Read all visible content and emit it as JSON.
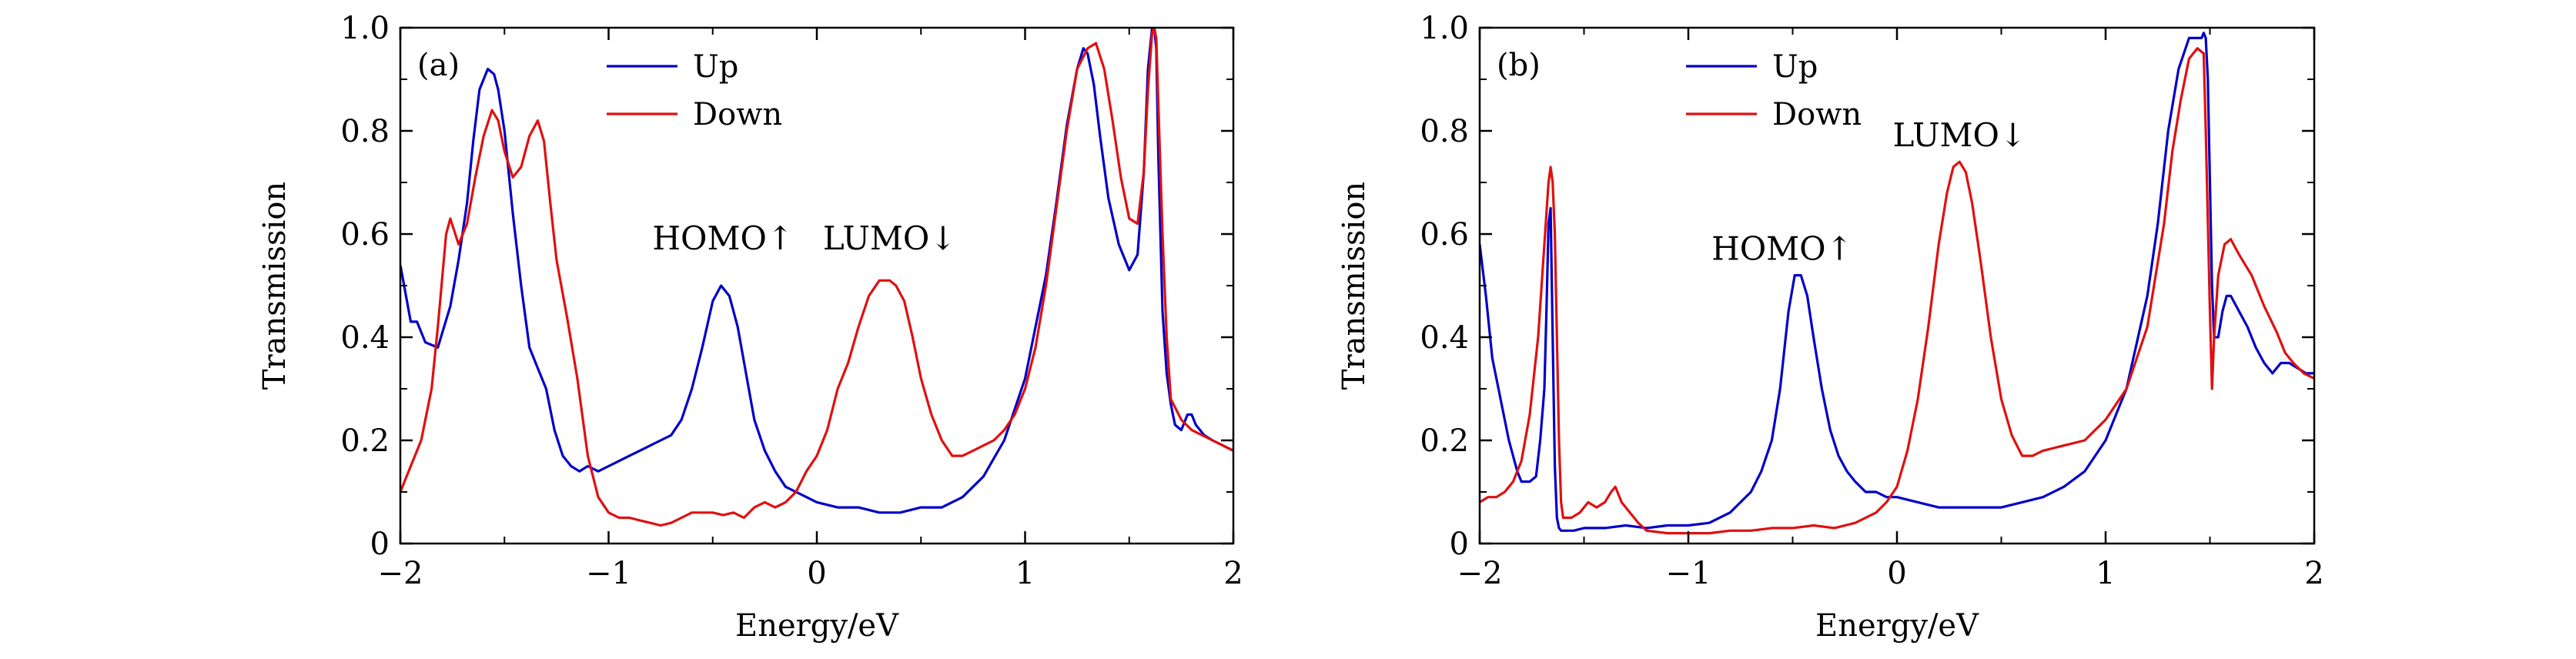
{
  "colors": {
    "up": "#0000c8",
    "down": "#e01010",
    "axis": "#000000"
  },
  "chart_data": [
    {
      "type": "line",
      "panel_label": "(a)",
      "xlabel": "Energy/eV",
      "ylabel": "Transmission",
      "xlim": [
        -2,
        2
      ],
      "ylim": [
        0,
        1.0
      ],
      "xticks": [
        -2,
        -1,
        0,
        1,
        2
      ],
      "xtick_labels": [
        "−2",
        "−1",
        "0",
        "1",
        "2"
      ],
      "yticks": [
        0,
        0.2,
        0.4,
        0.6,
        0.8,
        1.0
      ],
      "ytick_labels": [
        "0",
        "0.2",
        "0.4",
        "0.6",
        "0.8",
        "1.0"
      ],
      "grid": false,
      "legend_position": "top-left",
      "annotations": [
        {
          "text": "HOMO↑",
          "x": -0.45,
          "y": 0.57
        },
        {
          "text": "LUMO↓",
          "x": 0.35,
          "y": 0.57
        }
      ],
      "series": [
        {
          "name": "Up",
          "color_key": "up",
          "x": [
            -2.0,
            -1.95,
            -1.92,
            -1.88,
            -1.82,
            -1.76,
            -1.72,
            -1.68,
            -1.65,
            -1.62,
            -1.58,
            -1.55,
            -1.53,
            -1.5,
            -1.46,
            -1.42,
            -1.38,
            -1.34,
            -1.3,
            -1.26,
            -1.22,
            -1.18,
            -1.14,
            -1.1,
            -1.05,
            -1.0,
            -0.95,
            -0.9,
            -0.85,
            -0.8,
            -0.75,
            -0.7,
            -0.65,
            -0.6,
            -0.55,
            -0.5,
            -0.46,
            -0.42,
            -0.38,
            -0.34,
            -0.3,
            -0.25,
            -0.2,
            -0.15,
            -0.1,
            -0.05,
            0.0,
            0.1,
            0.2,
            0.3,
            0.4,
            0.5,
            0.6,
            0.7,
            0.8,
            0.9,
            1.0,
            1.1,
            1.15,
            1.2,
            1.25,
            1.28,
            1.3,
            1.33,
            1.36,
            1.4,
            1.45,
            1.5,
            1.54,
            1.57,
            1.59,
            1.61,
            1.62,
            1.63,
            1.64,
            1.66,
            1.68,
            1.7,
            1.72,
            1.75,
            1.78,
            1.8,
            1.82,
            1.86,
            1.9,
            1.95,
            2.0
          ],
          "y": [
            0.54,
            0.43,
            0.43,
            0.39,
            0.38,
            0.46,
            0.55,
            0.66,
            0.78,
            0.88,
            0.92,
            0.91,
            0.88,
            0.8,
            0.64,
            0.5,
            0.38,
            0.34,
            0.3,
            0.22,
            0.17,
            0.15,
            0.14,
            0.15,
            0.14,
            0.15,
            0.16,
            0.17,
            0.18,
            0.19,
            0.2,
            0.21,
            0.24,
            0.3,
            0.38,
            0.47,
            0.5,
            0.48,
            0.42,
            0.33,
            0.24,
            0.18,
            0.14,
            0.11,
            0.1,
            0.09,
            0.08,
            0.07,
            0.07,
            0.06,
            0.06,
            0.07,
            0.07,
            0.09,
            0.13,
            0.2,
            0.32,
            0.52,
            0.66,
            0.81,
            0.92,
            0.96,
            0.95,
            0.89,
            0.79,
            0.67,
            0.58,
            0.53,
            0.56,
            0.72,
            0.92,
            1.0,
            1.0,
            0.96,
            0.75,
            0.45,
            0.33,
            0.27,
            0.23,
            0.22,
            0.25,
            0.25,
            0.23,
            0.21,
            0.2,
            0.19,
            0.18
          ]
        },
        {
          "name": "Down",
          "color_key": "down",
          "x": [
            -2.0,
            -1.95,
            -1.9,
            -1.85,
            -1.82,
            -1.78,
            -1.76,
            -1.72,
            -1.68,
            -1.64,
            -1.6,
            -1.56,
            -1.53,
            -1.5,
            -1.46,
            -1.42,
            -1.38,
            -1.34,
            -1.31,
            -1.28,
            -1.25,
            -1.2,
            -1.15,
            -1.1,
            -1.05,
            -1.0,
            -0.95,
            -0.9,
            -0.85,
            -0.8,
            -0.75,
            -0.7,
            -0.65,
            -0.6,
            -0.55,
            -0.5,
            -0.45,
            -0.4,
            -0.35,
            -0.3,
            -0.25,
            -0.2,
            -0.15,
            -0.1,
            -0.05,
            0.0,
            0.05,
            0.1,
            0.15,
            0.2,
            0.25,
            0.3,
            0.35,
            0.38,
            0.42,
            0.46,
            0.5,
            0.55,
            0.6,
            0.65,
            0.7,
            0.75,
            0.8,
            0.85,
            0.9,
            0.95,
            1.0,
            1.05,
            1.1,
            1.15,
            1.2,
            1.25,
            1.3,
            1.34,
            1.38,
            1.42,
            1.46,
            1.5,
            1.54,
            1.57,
            1.59,
            1.61,
            1.62,
            1.63,
            1.64,
            1.66,
            1.68,
            1.7,
            1.75,
            1.8,
            1.85,
            1.9,
            1.95,
            2.0
          ],
          "y": [
            0.1,
            0.15,
            0.2,
            0.3,
            0.42,
            0.6,
            0.63,
            0.58,
            0.62,
            0.71,
            0.79,
            0.84,
            0.82,
            0.76,
            0.71,
            0.73,
            0.79,
            0.82,
            0.78,
            0.66,
            0.55,
            0.44,
            0.32,
            0.17,
            0.09,
            0.06,
            0.05,
            0.05,
            0.045,
            0.04,
            0.035,
            0.04,
            0.05,
            0.06,
            0.06,
            0.06,
            0.055,
            0.06,
            0.05,
            0.07,
            0.08,
            0.07,
            0.08,
            0.1,
            0.14,
            0.17,
            0.22,
            0.3,
            0.35,
            0.42,
            0.48,
            0.51,
            0.51,
            0.5,
            0.47,
            0.4,
            0.32,
            0.25,
            0.2,
            0.17,
            0.17,
            0.18,
            0.19,
            0.2,
            0.22,
            0.25,
            0.3,
            0.38,
            0.5,
            0.65,
            0.8,
            0.92,
            0.96,
            0.97,
            0.92,
            0.82,
            0.71,
            0.63,
            0.62,
            0.72,
            0.88,
            0.99,
            1.0,
            0.98,
            0.85,
            0.6,
            0.4,
            0.28,
            0.24,
            0.22,
            0.21,
            0.2,
            0.19,
            0.18
          ]
        }
      ]
    },
    {
      "type": "line",
      "panel_label": "(b)",
      "xlabel": "Energy/eV",
      "ylabel": "Transmission",
      "xlim": [
        -2,
        2
      ],
      "ylim": [
        0,
        1.0
      ],
      "xticks": [
        -2,
        -1,
        0,
        1,
        2
      ],
      "xtick_labels": [
        "−2",
        "−1",
        "0",
        "1",
        "2"
      ],
      "yticks": [
        0,
        0.2,
        0.4,
        0.6,
        0.8,
        1.0
      ],
      "ytick_labels": [
        "0",
        "0.2",
        "0.4",
        "0.6",
        "0.8",
        "1.0"
      ],
      "grid": false,
      "legend_position": "top-left",
      "annotations": [
        {
          "text": "HOMO↑",
          "x": -0.55,
          "y": 0.55
        },
        {
          "text": "LUMO↓",
          "x": 0.3,
          "y": 0.77
        }
      ],
      "series": [
        {
          "name": "Up",
          "color_key": "up",
          "x": [
            -2.0,
            -1.97,
            -1.94,
            -1.9,
            -1.86,
            -1.82,
            -1.8,
            -1.76,
            -1.73,
            -1.71,
            -1.69,
            -1.68,
            -1.67,
            -1.66,
            -1.65,
            -1.64,
            -1.63,
            -1.62,
            -1.61,
            -1.6,
            -1.55,
            -1.5,
            -1.4,
            -1.3,
            -1.2,
            -1.1,
            -1.0,
            -0.9,
            -0.8,
            -0.75,
            -0.7,
            -0.65,
            -0.6,
            -0.56,
            -0.52,
            -0.49,
            -0.46,
            -0.43,
            -0.4,
            -0.36,
            -0.32,
            -0.28,
            -0.24,
            -0.2,
            -0.15,
            -0.1,
            -0.05,
            0.0,
            0.1,
            0.2,
            0.3,
            0.4,
            0.5,
            0.6,
            0.7,
            0.8,
            0.9,
            1.0,
            1.1,
            1.2,
            1.25,
            1.3,
            1.35,
            1.4,
            1.44,
            1.46,
            1.47,
            1.48,
            1.49,
            1.5,
            1.51,
            1.52,
            1.54,
            1.56,
            1.58,
            1.6,
            1.64,
            1.68,
            1.72,
            1.76,
            1.8,
            1.84,
            1.88,
            1.92,
            1.96,
            2.0
          ],
          "y": [
            0.58,
            0.48,
            0.36,
            0.28,
            0.2,
            0.14,
            0.12,
            0.12,
            0.13,
            0.2,
            0.3,
            0.45,
            0.62,
            0.65,
            0.4,
            0.15,
            0.05,
            0.03,
            0.025,
            0.025,
            0.025,
            0.03,
            0.03,
            0.035,
            0.03,
            0.035,
            0.035,
            0.04,
            0.06,
            0.08,
            0.1,
            0.14,
            0.2,
            0.3,
            0.45,
            0.52,
            0.52,
            0.48,
            0.4,
            0.3,
            0.22,
            0.17,
            0.14,
            0.12,
            0.1,
            0.1,
            0.09,
            0.09,
            0.08,
            0.07,
            0.07,
            0.07,
            0.07,
            0.08,
            0.09,
            0.11,
            0.14,
            0.2,
            0.3,
            0.48,
            0.62,
            0.8,
            0.92,
            0.98,
            0.98,
            0.98,
            0.99,
            0.98,
            0.9,
            0.7,
            0.5,
            0.4,
            0.4,
            0.45,
            0.48,
            0.48,
            0.45,
            0.42,
            0.38,
            0.35,
            0.33,
            0.35,
            0.35,
            0.34,
            0.33,
            0.33
          ]
        },
        {
          "name": "Down",
          "color_key": "down",
          "x": [
            -2.0,
            -1.96,
            -1.92,
            -1.88,
            -1.84,
            -1.8,
            -1.76,
            -1.72,
            -1.69,
            -1.67,
            -1.66,
            -1.65,
            -1.64,
            -1.63,
            -1.62,
            -1.61,
            -1.6,
            -1.58,
            -1.56,
            -1.52,
            -1.48,
            -1.44,
            -1.4,
            -1.37,
            -1.35,
            -1.32,
            -1.28,
            -1.24,
            -1.2,
            -1.1,
            -1.0,
            -0.9,
            -0.8,
            -0.7,
            -0.6,
            -0.5,
            -0.4,
            -0.3,
            -0.2,
            -0.1,
            -0.05,
            0.0,
            0.05,
            0.1,
            0.15,
            0.2,
            0.24,
            0.27,
            0.3,
            0.33,
            0.36,
            0.4,
            0.45,
            0.5,
            0.55,
            0.6,
            0.65,
            0.7,
            0.8,
            0.9,
            1.0,
            1.1,
            1.2,
            1.28,
            1.32,
            1.36,
            1.4,
            1.44,
            1.47,
            1.48,
            1.5,
            1.51,
            1.52,
            1.54,
            1.57,
            1.6,
            1.64,
            1.7,
            1.76,
            1.82,
            1.86,
            1.9,
            1.95,
            2.0
          ],
          "y": [
            0.08,
            0.09,
            0.09,
            0.1,
            0.12,
            0.16,
            0.25,
            0.4,
            0.58,
            0.7,
            0.73,
            0.7,
            0.6,
            0.4,
            0.2,
            0.08,
            0.05,
            0.05,
            0.05,
            0.06,
            0.08,
            0.07,
            0.08,
            0.1,
            0.11,
            0.08,
            0.06,
            0.04,
            0.025,
            0.02,
            0.02,
            0.02,
            0.025,
            0.025,
            0.03,
            0.03,
            0.035,
            0.03,
            0.04,
            0.06,
            0.08,
            0.11,
            0.18,
            0.28,
            0.42,
            0.58,
            0.68,
            0.73,
            0.74,
            0.72,
            0.66,
            0.55,
            0.4,
            0.28,
            0.21,
            0.17,
            0.17,
            0.18,
            0.19,
            0.2,
            0.24,
            0.3,
            0.42,
            0.62,
            0.76,
            0.86,
            0.94,
            0.96,
            0.95,
            0.8,
            0.45,
            0.3,
            0.4,
            0.52,
            0.58,
            0.59,
            0.56,
            0.52,
            0.46,
            0.41,
            0.37,
            0.35,
            0.33,
            0.32
          ]
        }
      ]
    }
  ]
}
